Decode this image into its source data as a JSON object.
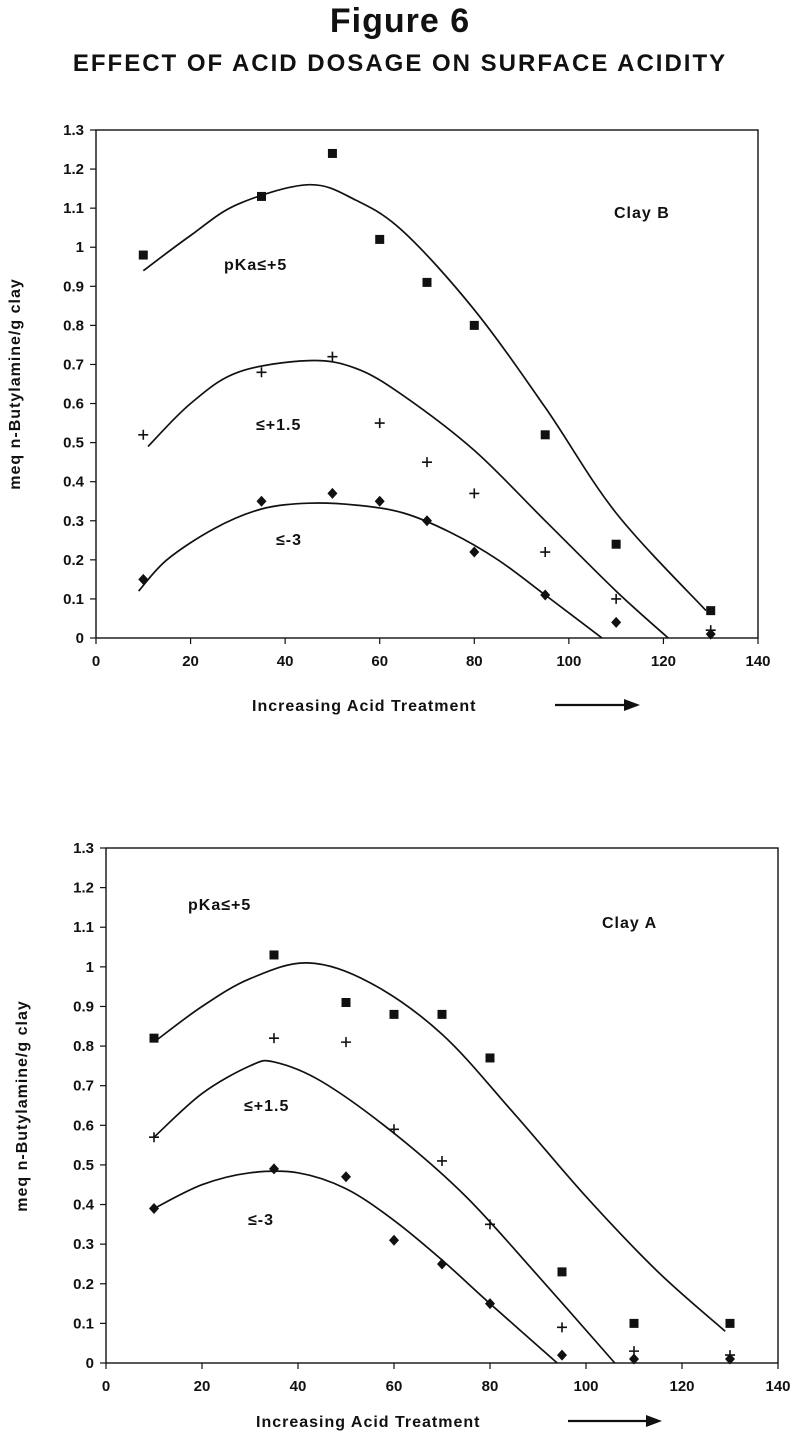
{
  "figure": {
    "title": "Figure 6",
    "subtitle": "EFFECT OF ACID DOSAGE ON SURFACE ACIDITY"
  },
  "chart_data": [
    {
      "type": "scatter",
      "xlabel": "Increasing Acid Treatment",
      "ylabel": "meq n-Butylamine/g clay",
      "xlim": [
        0,
        140
      ],
      "ylim": [
        0,
        1.3
      ],
      "x_ticks": [
        "0",
        "20",
        "40",
        "60",
        "80",
        "100",
        "120",
        "140"
      ],
      "y_ticks": [
        "0",
        "0.1",
        "0.2",
        "0.3",
        "0.4",
        "0.5",
        "0.6",
        "0.7",
        "0.8",
        "0.9",
        "1",
        "1.1",
        "1.2",
        "1.3"
      ],
      "grid": false,
      "annotations": {
        "panel_label": "Clay B",
        "series_labels": [
          "pKa≤+5",
          "≤+1.5",
          "≤-3"
        ]
      },
      "series": [
        {
          "marker": "square",
          "points": [
            [
              10,
              0.98
            ],
            [
              35,
              1.13
            ],
            [
              50,
              1.24
            ],
            [
              60,
              1.02
            ],
            [
              70,
              0.91
            ],
            [
              80,
              0.8
            ],
            [
              95,
              0.52
            ],
            [
              110,
              0.24
            ],
            [
              130,
              0.07
            ]
          ],
          "fit_curve": [
            [
              10,
              0.94
            ],
            [
              20,
              1.03
            ],
            [
              30,
              1.11
            ],
            [
              45,
              1.16
            ],
            [
              55,
              1.12
            ],
            [
              65,
              1.04
            ],
            [
              80,
              0.84
            ],
            [
              95,
              0.59
            ],
            [
              110,
              0.32
            ],
            [
              129,
              0.07
            ]
          ]
        },
        {
          "marker": "plus",
          "points": [
            [
              10,
              0.52
            ],
            [
              35,
              0.68
            ],
            [
              50,
              0.72
            ],
            [
              60,
              0.55
            ],
            [
              70,
              0.45
            ],
            [
              80,
              0.37
            ],
            [
              95,
              0.22
            ],
            [
              110,
              0.1
            ],
            [
              130,
              0.02
            ]
          ],
          "fit_curve": [
            [
              11,
              0.49
            ],
            [
              20,
              0.6
            ],
            [
              30,
              0.68
            ],
            [
              45,
              0.71
            ],
            [
              55,
              0.69
            ],
            [
              65,
              0.62
            ],
            [
              80,
              0.48
            ],
            [
              95,
              0.3
            ],
            [
              110,
              0.12
            ],
            [
              121,
              0.0
            ]
          ]
        },
        {
          "marker": "diamond",
          "points": [
            [
              10,
              0.15
            ],
            [
              35,
              0.35
            ],
            [
              50,
              0.37
            ],
            [
              60,
              0.35
            ],
            [
              70,
              0.3
            ],
            [
              80,
              0.22
            ],
            [
              95,
              0.11
            ],
            [
              110,
              0.04
            ],
            [
              130,
              0.01
            ]
          ],
          "fit_curve": [
            [
              9,
              0.12
            ],
            [
              15,
              0.2
            ],
            [
              25,
              0.28
            ],
            [
              35,
              0.33
            ],
            [
              45,
              0.345
            ],
            [
              55,
              0.34
            ],
            [
              65,
              0.32
            ],
            [
              75,
              0.27
            ],
            [
              85,
              0.2
            ],
            [
              95,
              0.11
            ],
            [
              107,
              0.0
            ]
          ]
        }
      ]
    },
    {
      "type": "scatter",
      "xlabel": "Increasing Acid Treatment",
      "ylabel": "meq n-Butylamine/g clay",
      "xlim": [
        0,
        140
      ],
      "ylim": [
        0,
        1.3
      ],
      "x_ticks": [
        "0",
        "20",
        "40",
        "60",
        "80",
        "100",
        "120",
        "140"
      ],
      "y_ticks": [
        "0",
        "0.1",
        "0.2",
        "0.3",
        "0.4",
        "0.5",
        "0.6",
        "0.7",
        "0.8",
        "0.9",
        "1",
        "1.1",
        "1.2",
        "1.3"
      ],
      "grid": false,
      "annotations": {
        "panel_label": "Clay A",
        "series_labels": [
          "pKa≤+5",
          "≤+1.5",
          "≤-3"
        ]
      },
      "series": [
        {
          "marker": "square",
          "points": [
            [
              10,
              0.82
            ],
            [
              35,
              1.03
            ],
            [
              50,
              0.91
            ],
            [
              60,
              0.88
            ],
            [
              70,
              0.88
            ],
            [
              80,
              0.77
            ],
            [
              95,
              0.23
            ],
            [
              110,
              0.1
            ],
            [
              130,
              0.1
            ]
          ],
          "fit_curve": [
            [
              10,
              0.81
            ],
            [
              20,
              0.9
            ],
            [
              30,
              0.97
            ],
            [
              42,
              1.01
            ],
            [
              55,
              0.96
            ],
            [
              70,
              0.83
            ],
            [
              85,
              0.63
            ],
            [
              100,
              0.42
            ],
            [
              115,
              0.23
            ],
            [
              129,
              0.08
            ]
          ]
        },
        {
          "marker": "plus",
          "points": [
            [
              10,
              0.57
            ],
            [
              35,
              0.82
            ],
            [
              50,
              0.81
            ],
            [
              60,
              0.59
            ],
            [
              70,
              0.51
            ],
            [
              80,
              0.35
            ],
            [
              95,
              0.09
            ],
            [
              110,
              0.03
            ],
            [
              130,
              0.02
            ]
          ],
          "fit_curve": [
            [
              10,
              0.57
            ],
            [
              20,
              0.68
            ],
            [
              30,
              0.75
            ],
            [
              35,
              0.76
            ],
            [
              45,
              0.71
            ],
            [
              60,
              0.58
            ],
            [
              75,
              0.42
            ],
            [
              90,
              0.22
            ],
            [
              106,
              0.0
            ]
          ]
        },
        {
          "marker": "diamond",
          "points": [
            [
              10,
              0.39
            ],
            [
              35,
              0.49
            ],
            [
              50,
              0.47
            ],
            [
              60,
              0.31
            ],
            [
              70,
              0.25
            ],
            [
              80,
              0.15
            ],
            [
              95,
              0.02
            ],
            [
              110,
              0.01
            ],
            [
              130,
              0.01
            ]
          ],
          "fit_curve": [
            [
              10,
              0.39
            ],
            [
              20,
              0.45
            ],
            [
              30,
              0.48
            ],
            [
              40,
              0.48
            ],
            [
              50,
              0.44
            ],
            [
              60,
              0.36
            ],
            [
              70,
              0.26
            ],
            [
              80,
              0.15
            ],
            [
              94,
              0.0
            ]
          ]
        }
      ]
    }
  ]
}
